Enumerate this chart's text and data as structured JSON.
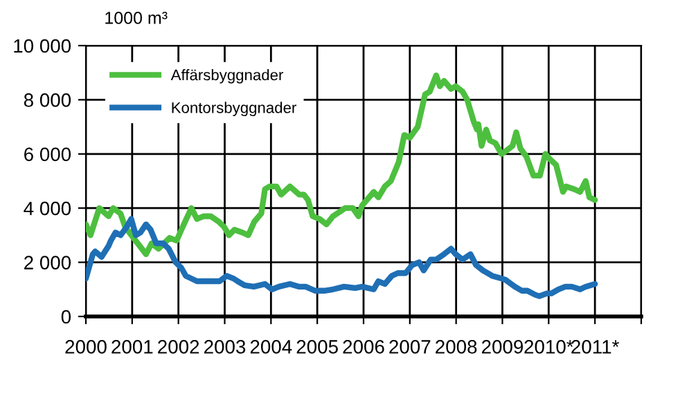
{
  "chart_data": {
    "type": "line",
    "title": "1000 m³",
    "xlim": [
      2000,
      2012
    ],
    "xticks": [
      2000,
      2001,
      2002,
      2003,
      2004,
      2005,
      2006,
      2007,
      2008,
      2009,
      {
        "value": 2010,
        "label": "2010*"
      },
      {
        "value": 2011,
        "label": "2011*"
      },
      {
        "value": 2012,
        "label": null
      }
    ],
    "ylim": [
      0,
      10000
    ],
    "yticks": [
      {
        "value": 0,
        "label": "0"
      },
      {
        "value": 2000,
        "label": "2 000"
      },
      {
        "value": 4000,
        "label": "4 000"
      },
      {
        "value": 6000,
        "label": "6 000"
      },
      {
        "value": 8000,
        "label": "8 000"
      },
      {
        "value": 10000,
        "label": "10 000"
      }
    ],
    "grid": true,
    "legend": "top left",
    "series": [
      {
        "name": "Affärsbyggnader",
        "color": "#4dbf3f",
        "x": [
          2000.0,
          2000.1,
          2000.29,
          2000.49,
          2000.59,
          2000.75,
          2000.85,
          2001.3,
          2001.42,
          2001.57,
          2001.81,
          2001.96,
          2002.09,
          2002.28,
          2002.4,
          2002.55,
          2002.7,
          2002.87,
          2002.99,
          2003.09,
          2003.21,
          2003.38,
          2003.51,
          2003.64,
          2003.79,
          2003.87,
          2003.97,
          2004.12,
          2004.22,
          2004.41,
          2004.61,
          2004.71,
          2004.8,
          2004.9,
          2005.05,
          2005.2,
          2005.34,
          2005.6,
          2005.77,
          2005.89,
          2005.97,
          2006.22,
          2006.32,
          2006.46,
          2006.59,
          2006.76,
          2006.88,
          2007.0,
          2007.17,
          2007.33,
          2007.43,
          2007.57,
          2007.65,
          2007.74,
          2007.89,
          2007.99,
          2008.14,
          2008.24,
          2008.38,
          2008.45,
          2008.48,
          2008.55,
          2008.65,
          2008.73,
          2008.85,
          2008.98,
          2009.07,
          2009.22,
          2009.3,
          2009.39,
          2009.52,
          2009.67,
          2009.81,
          2009.93,
          2010.03,
          2010.16,
          2010.31,
          2010.38,
          2010.55,
          2010.68,
          2010.8,
          2010.88,
          2011.0
        ],
        "values": [
          3400,
          3000,
          4000,
          3700,
          4000,
          3800,
          3300,
          2300,
          2700,
          2500,
          2900,
          2800,
          3300,
          4000,
          3600,
          3700,
          3700,
          3500,
          3300,
          3000,
          3200,
          3100,
          3000,
          3500,
          3800,
          4700,
          4800,
          4800,
          4500,
          4800,
          4500,
          4500,
          4300,
          3700,
          3600,
          3400,
          3700,
          4000,
          4000,
          3700,
          4100,
          4600,
          4400,
          4800,
          5000,
          5700,
          6700,
          6600,
          7000,
          8200,
          8300,
          8900,
          8500,
          8700,
          8400,
          8500,
          8300,
          8000,
          7200,
          6900,
          7100,
          6300,
          6900,
          6500,
          6400,
          6000,
          6100,
          6300,
          6800,
          6200,
          5900,
          5200,
          5200,
          6000,
          5800,
          5600,
          4600,
          4800,
          4700,
          4600,
          5000,
          4400,
          4300
        ]
      },
      {
        "name": "Kontorsbyggnader",
        "color": "#1f6fb5",
        "x": [
          2000.0,
          2000.15,
          2000.2,
          2000.34,
          2000.49,
          2000.54,
          2000.64,
          2000.75,
          2000.88,
          2000.98,
          2001.08,
          2001.18,
          2001.3,
          2001.4,
          2001.52,
          2001.67,
          2001.79,
          2001.94,
          2002.06,
          2002.16,
          2002.28,
          2002.4,
          2002.89,
          2003.04,
          2003.19,
          2003.28,
          2003.43,
          2003.63,
          2003.87,
          2004.02,
          2004.17,
          2004.41,
          2004.61,
          2004.75,
          2004.95,
          2005.15,
          2005.34,
          2005.58,
          2005.82,
          2005.97,
          2006.22,
          2006.32,
          2006.46,
          2006.61,
          2006.74,
          2006.91,
          2007.05,
          2007.2,
          2007.3,
          2007.45,
          2007.57,
          2007.74,
          2007.89,
          2007.99,
          2008.14,
          2008.31,
          2008.43,
          2008.58,
          2008.78,
          2008.98,
          2009.07,
          2009.27,
          2009.42,
          2009.54,
          2009.71,
          2009.8,
          2009.96,
          2010.06,
          2010.21,
          2010.36,
          2010.5,
          2010.68,
          2010.8,
          2011.0
        ],
        "values": [
          1400,
          2300,
          2400,
          2200,
          2600,
          2800,
          3100,
          3000,
          3300,
          3600,
          3000,
          3100,
          3400,
          3200,
          2700,
          2700,
          2500,
          2000,
          1800,
          1500,
          1400,
          1300,
          1300,
          1500,
          1400,
          1300,
          1150,
          1100,
          1200,
          1000,
          1100,
          1200,
          1100,
          1100,
          950,
          950,
          1000,
          1100,
          1050,
          1100,
          1000,
          1300,
          1200,
          1500,
          1600,
          1600,
          1900,
          2000,
          1700,
          2100,
          2100,
          2300,
          2500,
          2300,
          2100,
          2300,
          1900,
          1700,
          1500,
          1400,
          1350,
          1100,
          950,
          950,
          800,
          750,
          850,
          850,
          1000,
          1100,
          1100,
          1000,
          1100,
          1200
        ]
      }
    ]
  }
}
